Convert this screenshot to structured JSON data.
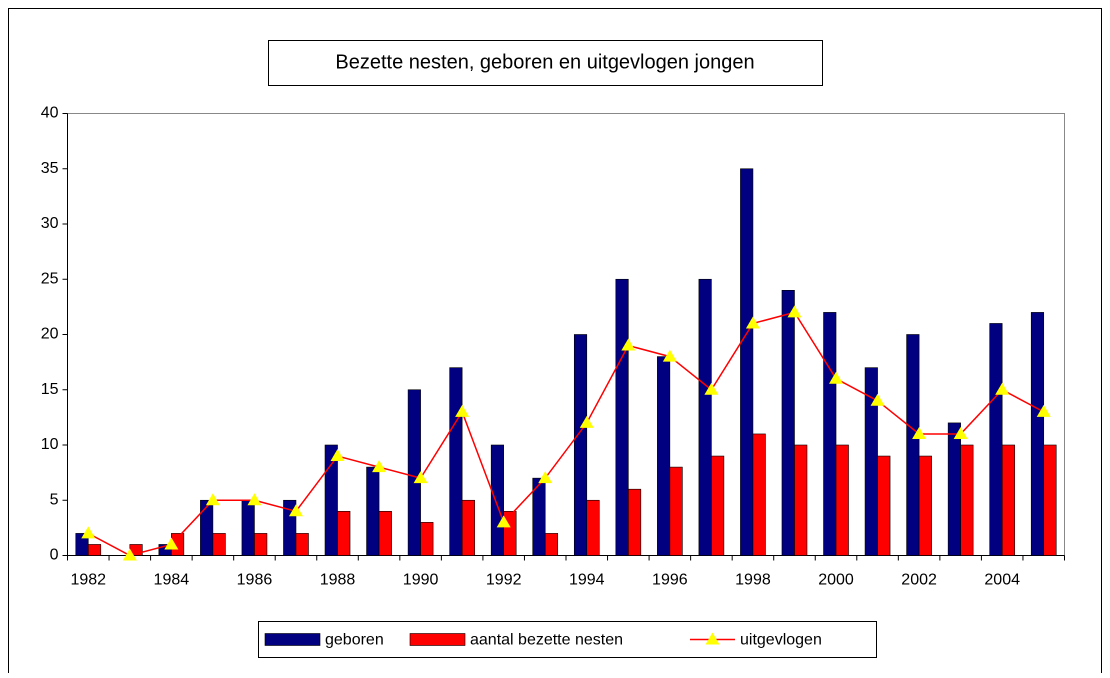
{
  "chart_data": {
    "type": "bar",
    "title": "Bezette nesten, geboren en uitgevlogen jongen",
    "categories": [
      1982,
      null,
      1984,
      null,
      1986,
      null,
      1988,
      null,
      1990,
      null,
      1992,
      null,
      1994,
      null,
      1996,
      null,
      1998,
      null,
      2000,
      null,
      2002,
      null,
      2004,
      null
    ],
    "series": [
      {
        "name": "geboren",
        "type": "bar",
        "color": "#000080",
        "values": [
          2,
          0,
          1,
          5,
          5,
          5,
          10,
          8,
          15,
          17,
          10,
          7,
          20,
          25,
          18,
          25,
          35,
          24,
          22,
          17,
          20,
          12,
          21,
          22
        ]
      },
      {
        "name": "aantal bezette nesten",
        "type": "bar",
        "color": "#ff0000",
        "values": [
          1,
          1,
          2,
          2,
          2,
          2,
          4,
          4,
          3,
          5,
          4,
          2,
          5,
          6,
          8,
          9,
          11,
          10,
          10,
          9,
          9,
          10,
          10,
          10
        ]
      },
      {
        "name": "uitgevlogen",
        "type": "line",
        "color": "#ff0000",
        "marker_color": "#ffff00",
        "values": [
          2,
          0,
          1,
          5,
          5,
          4,
          9,
          8,
          7,
          13,
          3,
          7,
          12,
          19,
          18,
          15,
          21,
          22,
          16,
          14,
          11,
          11,
          15,
          13
        ]
      }
    ],
    "ylim": [
      0,
      40
    ],
    "yticks": [
      0,
      5,
      10,
      15,
      20,
      25,
      30,
      35,
      40
    ],
    "grid": false,
    "legend": "bottom"
  }
}
